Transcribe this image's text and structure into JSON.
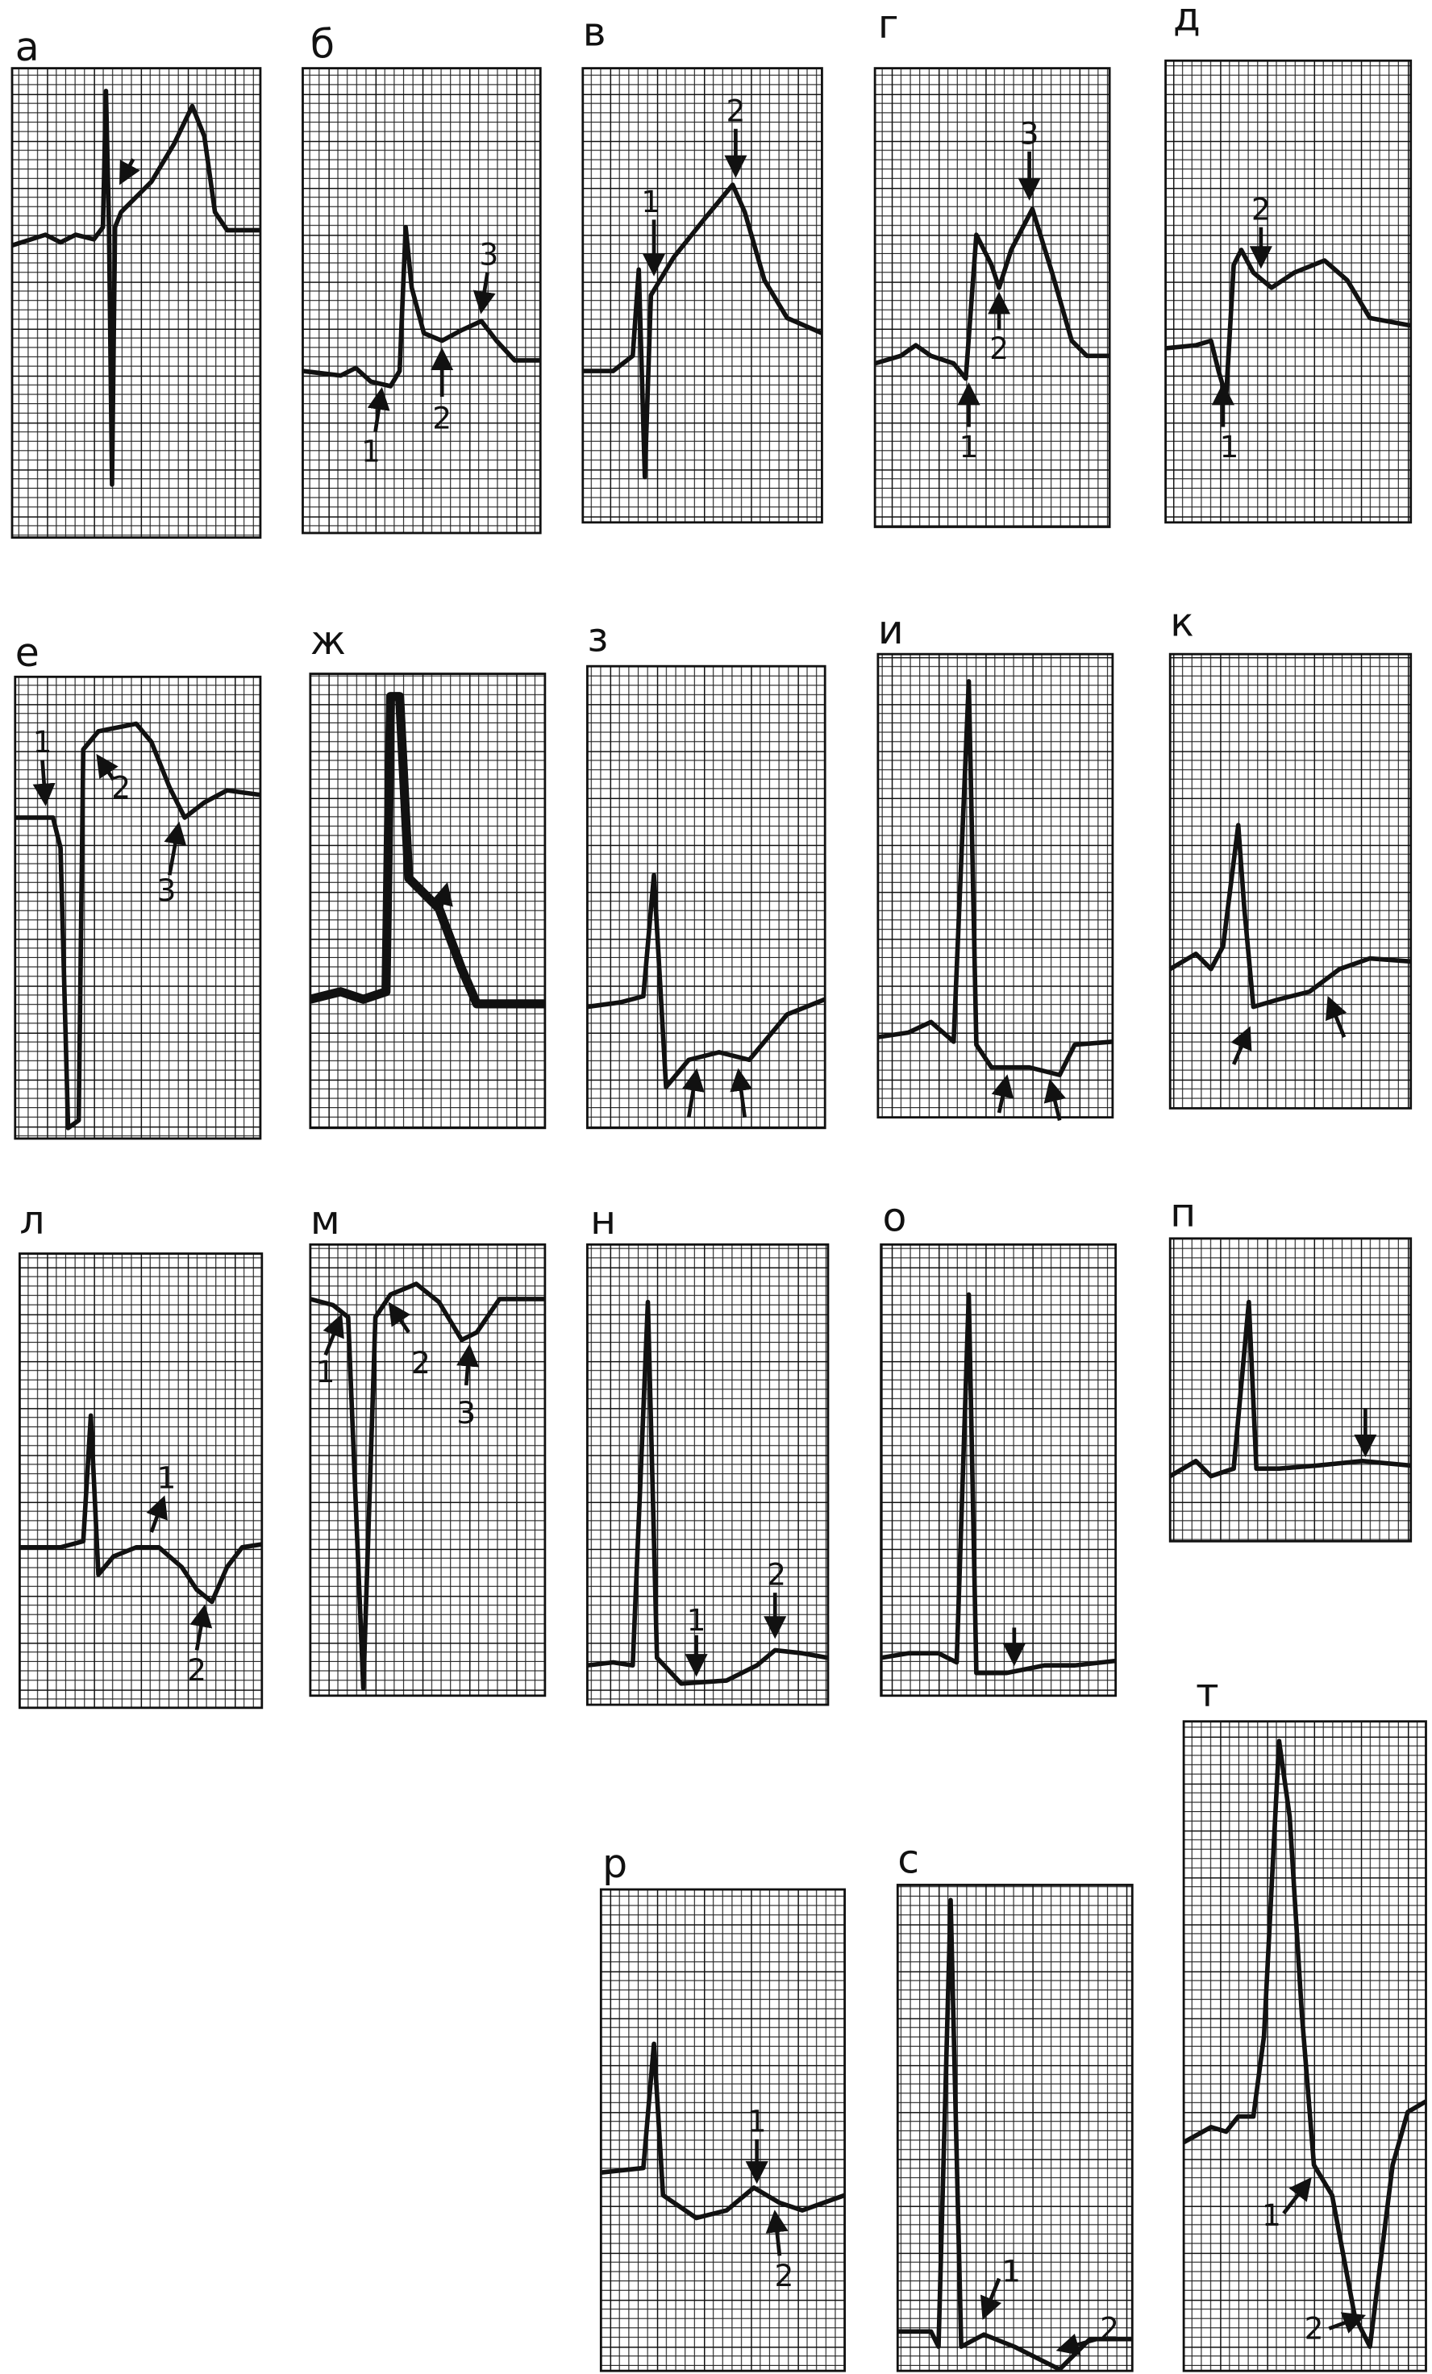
{
  "panels": [
    {
      "letter": "а",
      "labels": []
    },
    {
      "letter": "б",
      "labels": [
        "1",
        "2",
        "3"
      ]
    },
    {
      "letter": "в",
      "labels": [
        "1",
        "2"
      ]
    },
    {
      "letter": "г",
      "labels": [
        "1",
        "2",
        "3"
      ]
    },
    {
      "letter": "д",
      "labels": [
        "1",
        "2"
      ]
    },
    {
      "letter": "е",
      "labels": [
        "1",
        "2",
        "3"
      ]
    },
    {
      "letter": "ж",
      "labels": []
    },
    {
      "letter": "з",
      "labels": []
    },
    {
      "letter": "и",
      "labels": []
    },
    {
      "letter": "к",
      "labels": []
    },
    {
      "letter": "л",
      "labels": [
        "1",
        "2"
      ]
    },
    {
      "letter": "м",
      "labels": [
        "1",
        "2",
        "3"
      ]
    },
    {
      "letter": "н",
      "labels": [
        "1",
        "2"
      ]
    },
    {
      "letter": "о",
      "labels": []
    },
    {
      "letter": "п",
      "labels": []
    },
    {
      "letter": "р",
      "labels": [
        "1",
        "2"
      ]
    },
    {
      "letter": "с",
      "labels": [
        "1",
        "2"
      ]
    },
    {
      "letter": "т",
      "labels": [
        "1",
        "2"
      ]
    }
  ]
}
